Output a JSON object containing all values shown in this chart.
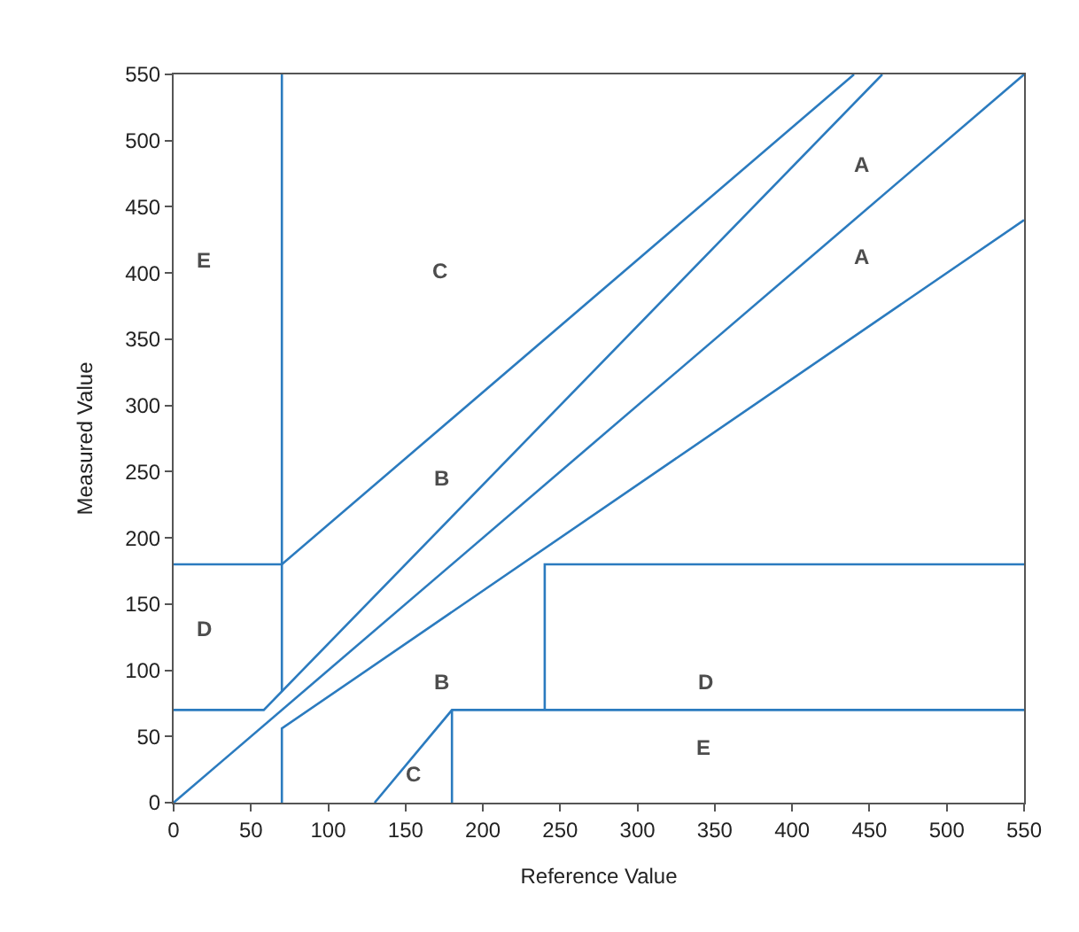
{
  "chart_data": {
    "type": "line",
    "xlabel": "Reference Value",
    "ylabel": "Measured Value",
    "xlim": [
      0,
      550
    ],
    "ylim": [
      0,
      550
    ],
    "xticks": [
      0,
      50,
      100,
      150,
      200,
      250,
      300,
      350,
      400,
      450,
      500,
      550
    ],
    "yticks": [
      0,
      50,
      100,
      150,
      200,
      250,
      300,
      350,
      400,
      450,
      500,
      550
    ],
    "grid": false,
    "marker": "none",
    "line_style": "solid",
    "series": [
      {
        "color": "#2b7bbf",
        "x": [
          0,
          550
        ],
        "values": [
          0,
          550
        ]
      },
      {
        "color": "#2b7bbf",
        "x": [
          0,
          58.3,
          458.3
        ],
        "values": [
          70,
          70,
          550
        ]
      },
      {
        "color": "#2b7bbf",
        "x": [
          70,
          70
        ],
        "values": [
          84,
          550
        ]
      },
      {
        "color": "#2b7bbf",
        "x": [
          0,
          70,
          440
        ],
        "values": [
          180,
          180,
          550
        ]
      },
      {
        "color": "#2b7bbf",
        "x": [
          70,
          70,
          550
        ],
        "values": [
          0,
          56,
          440
        ]
      },
      {
        "color": "#2b7bbf",
        "x": [
          130,
          180,
          550
        ],
        "values": [
          0,
          70,
          70
        ]
      },
      {
        "color": "#2b7bbf",
        "x": [
          180,
          180
        ],
        "values": [
          0,
          70
        ]
      },
      {
        "color": "#2b7bbf",
        "x": [
          240,
          240,
          550
        ],
        "values": [
          70,
          180,
          180
        ]
      }
    ],
    "annotations": [
      "A",
      "A",
      "B",
      "B",
      "C",
      "C",
      "D",
      "D",
      "E",
      "E"
    ]
  }
}
